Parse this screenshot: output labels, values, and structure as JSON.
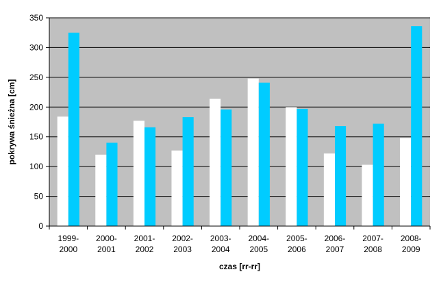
{
  "chart_data": {
    "type": "bar",
    "categories": [
      [
        "1999-",
        "2000"
      ],
      [
        "2000-",
        "2001"
      ],
      [
        "2001-",
        "2002"
      ],
      [
        "2002-",
        "2003"
      ],
      [
        "2003-",
        "2004"
      ],
      [
        "2004-",
        "2005"
      ],
      [
        "2005-",
        "2006"
      ],
      [
        "2006-",
        "2007"
      ],
      [
        "2007-",
        "2008"
      ],
      [
        "2008-",
        "2009"
      ]
    ],
    "series": [
      {
        "color": "#ffffff",
        "values": [
          184,
          120,
          177,
          127,
          214,
          248,
          200,
          122,
          103,
          148
        ]
      },
      {
        "color": "#00ccff",
        "values": [
          325,
          140,
          166,
          183,
          196,
          241,
          197,
          168,
          172,
          336
        ]
      }
    ],
    "xlabel": "czas [rr-rr]",
    "ylabel": "pokrywa śnieżna [cm]",
    "ylim": [
      0,
      350
    ],
    "yticks": [
      0,
      50,
      100,
      150,
      200,
      250,
      300,
      350
    ],
    "grid": true,
    "plot_background": "#c0c0c0",
    "legend": "none"
  }
}
